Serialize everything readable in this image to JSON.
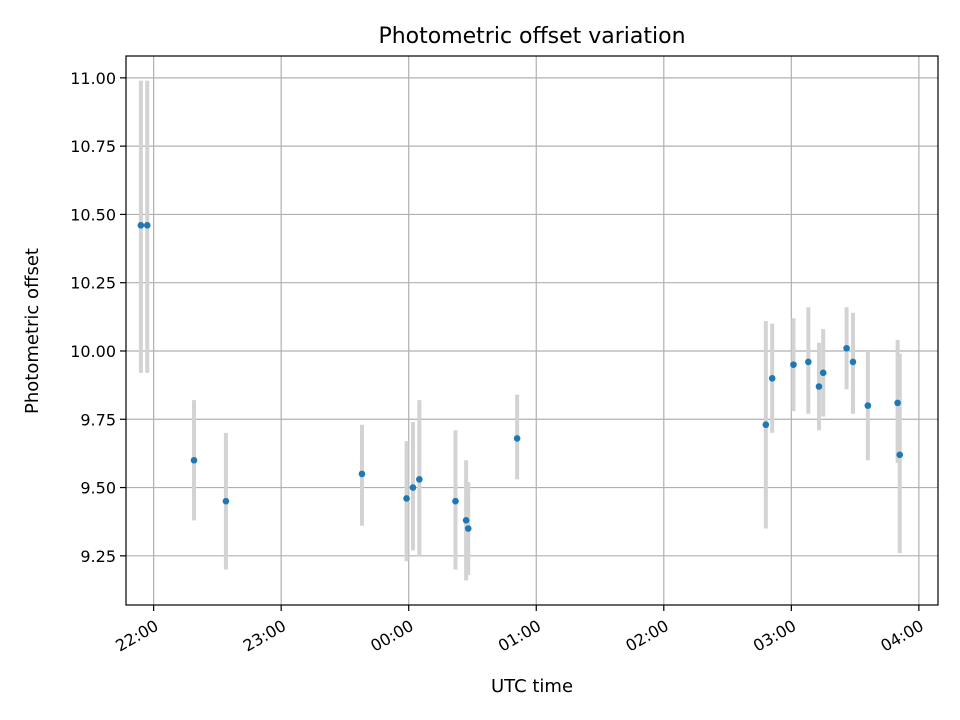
{
  "chart_data": {
    "type": "scatter",
    "title": "Photometric offset variation",
    "xlabel": "UTC time",
    "ylabel": "Photometric offset",
    "x_unit": "HH:MM",
    "xlim": [
      "21:47",
      "04:09"
    ],
    "ylim": [
      9.07,
      11.08
    ],
    "grid": true,
    "x_ticks": [
      "22:00",
      "23:00",
      "00:00",
      "01:00",
      "02:00",
      "03:00",
      "04:00"
    ],
    "y_ticks": [
      9.25,
      9.5,
      9.75,
      10.0,
      10.25,
      10.5,
      10.75,
      11.0
    ],
    "y_tick_labels": [
      "9.25",
      "9.50",
      "9.75",
      "10.00",
      "10.25",
      "10.50",
      "10.75",
      "11.00"
    ],
    "marker_color": "#1f77b4",
    "errorbar_color": "#d3d3d3",
    "points": [
      {
        "t": "21:54",
        "y": 10.46,
        "lo": 9.92,
        "hi": 10.99
      },
      {
        "t": "21:57",
        "y": 10.46,
        "lo": 9.92,
        "hi": 10.99
      },
      {
        "t": "22:19",
        "y": 9.6,
        "lo": 9.38,
        "hi": 9.82
      },
      {
        "t": "22:34",
        "y": 9.45,
        "lo": 9.2,
        "hi": 9.7
      },
      {
        "t": "23:38",
        "y": 9.55,
        "lo": 9.36,
        "hi": 9.73
      },
      {
        "t": "23:59",
        "y": 9.46,
        "lo": 9.23,
        "hi": 9.67
      },
      {
        "t": "00:02",
        "y": 9.5,
        "lo": 9.27,
        "hi": 9.74
      },
      {
        "t": "00:05",
        "y": 9.53,
        "lo": 9.25,
        "hi": 9.82
      },
      {
        "t": "00:22",
        "y": 9.45,
        "lo": 9.2,
        "hi": 9.71
      },
      {
        "t": "00:27",
        "y": 9.38,
        "lo": 9.16,
        "hi": 9.6
      },
      {
        "t": "00:28",
        "y": 9.35,
        "lo": 9.18,
        "hi": 9.52
      },
      {
        "t": "00:51",
        "y": 9.68,
        "lo": 9.53,
        "hi": 9.84
      },
      {
        "t": "02:48",
        "y": 9.73,
        "lo": 9.35,
        "hi": 10.11
      },
      {
        "t": "02:51",
        "y": 9.9,
        "lo": 9.7,
        "hi": 10.1
      },
      {
        "t": "03:01",
        "y": 9.95,
        "lo": 9.78,
        "hi": 10.12
      },
      {
        "t": "03:08",
        "y": 9.96,
        "lo": 9.77,
        "hi": 10.16
      },
      {
        "t": "03:13",
        "y": 9.87,
        "lo": 9.71,
        "hi": 10.03
      },
      {
        "t": "03:15",
        "y": 9.92,
        "lo": 9.76,
        "hi": 10.08
      },
      {
        "t": "03:26",
        "y": 10.01,
        "lo": 9.86,
        "hi": 10.16
      },
      {
        "t": "03:29",
        "y": 9.96,
        "lo": 9.77,
        "hi": 10.14
      },
      {
        "t": "03:36",
        "y": 9.8,
        "lo": 9.6,
        "hi": 10.0
      },
      {
        "t": "03:50",
        "y": 9.81,
        "lo": 9.59,
        "hi": 10.04
      },
      {
        "t": "03:51",
        "y": 9.62,
        "lo": 9.26,
        "hi": 9.99
      }
    ]
  }
}
